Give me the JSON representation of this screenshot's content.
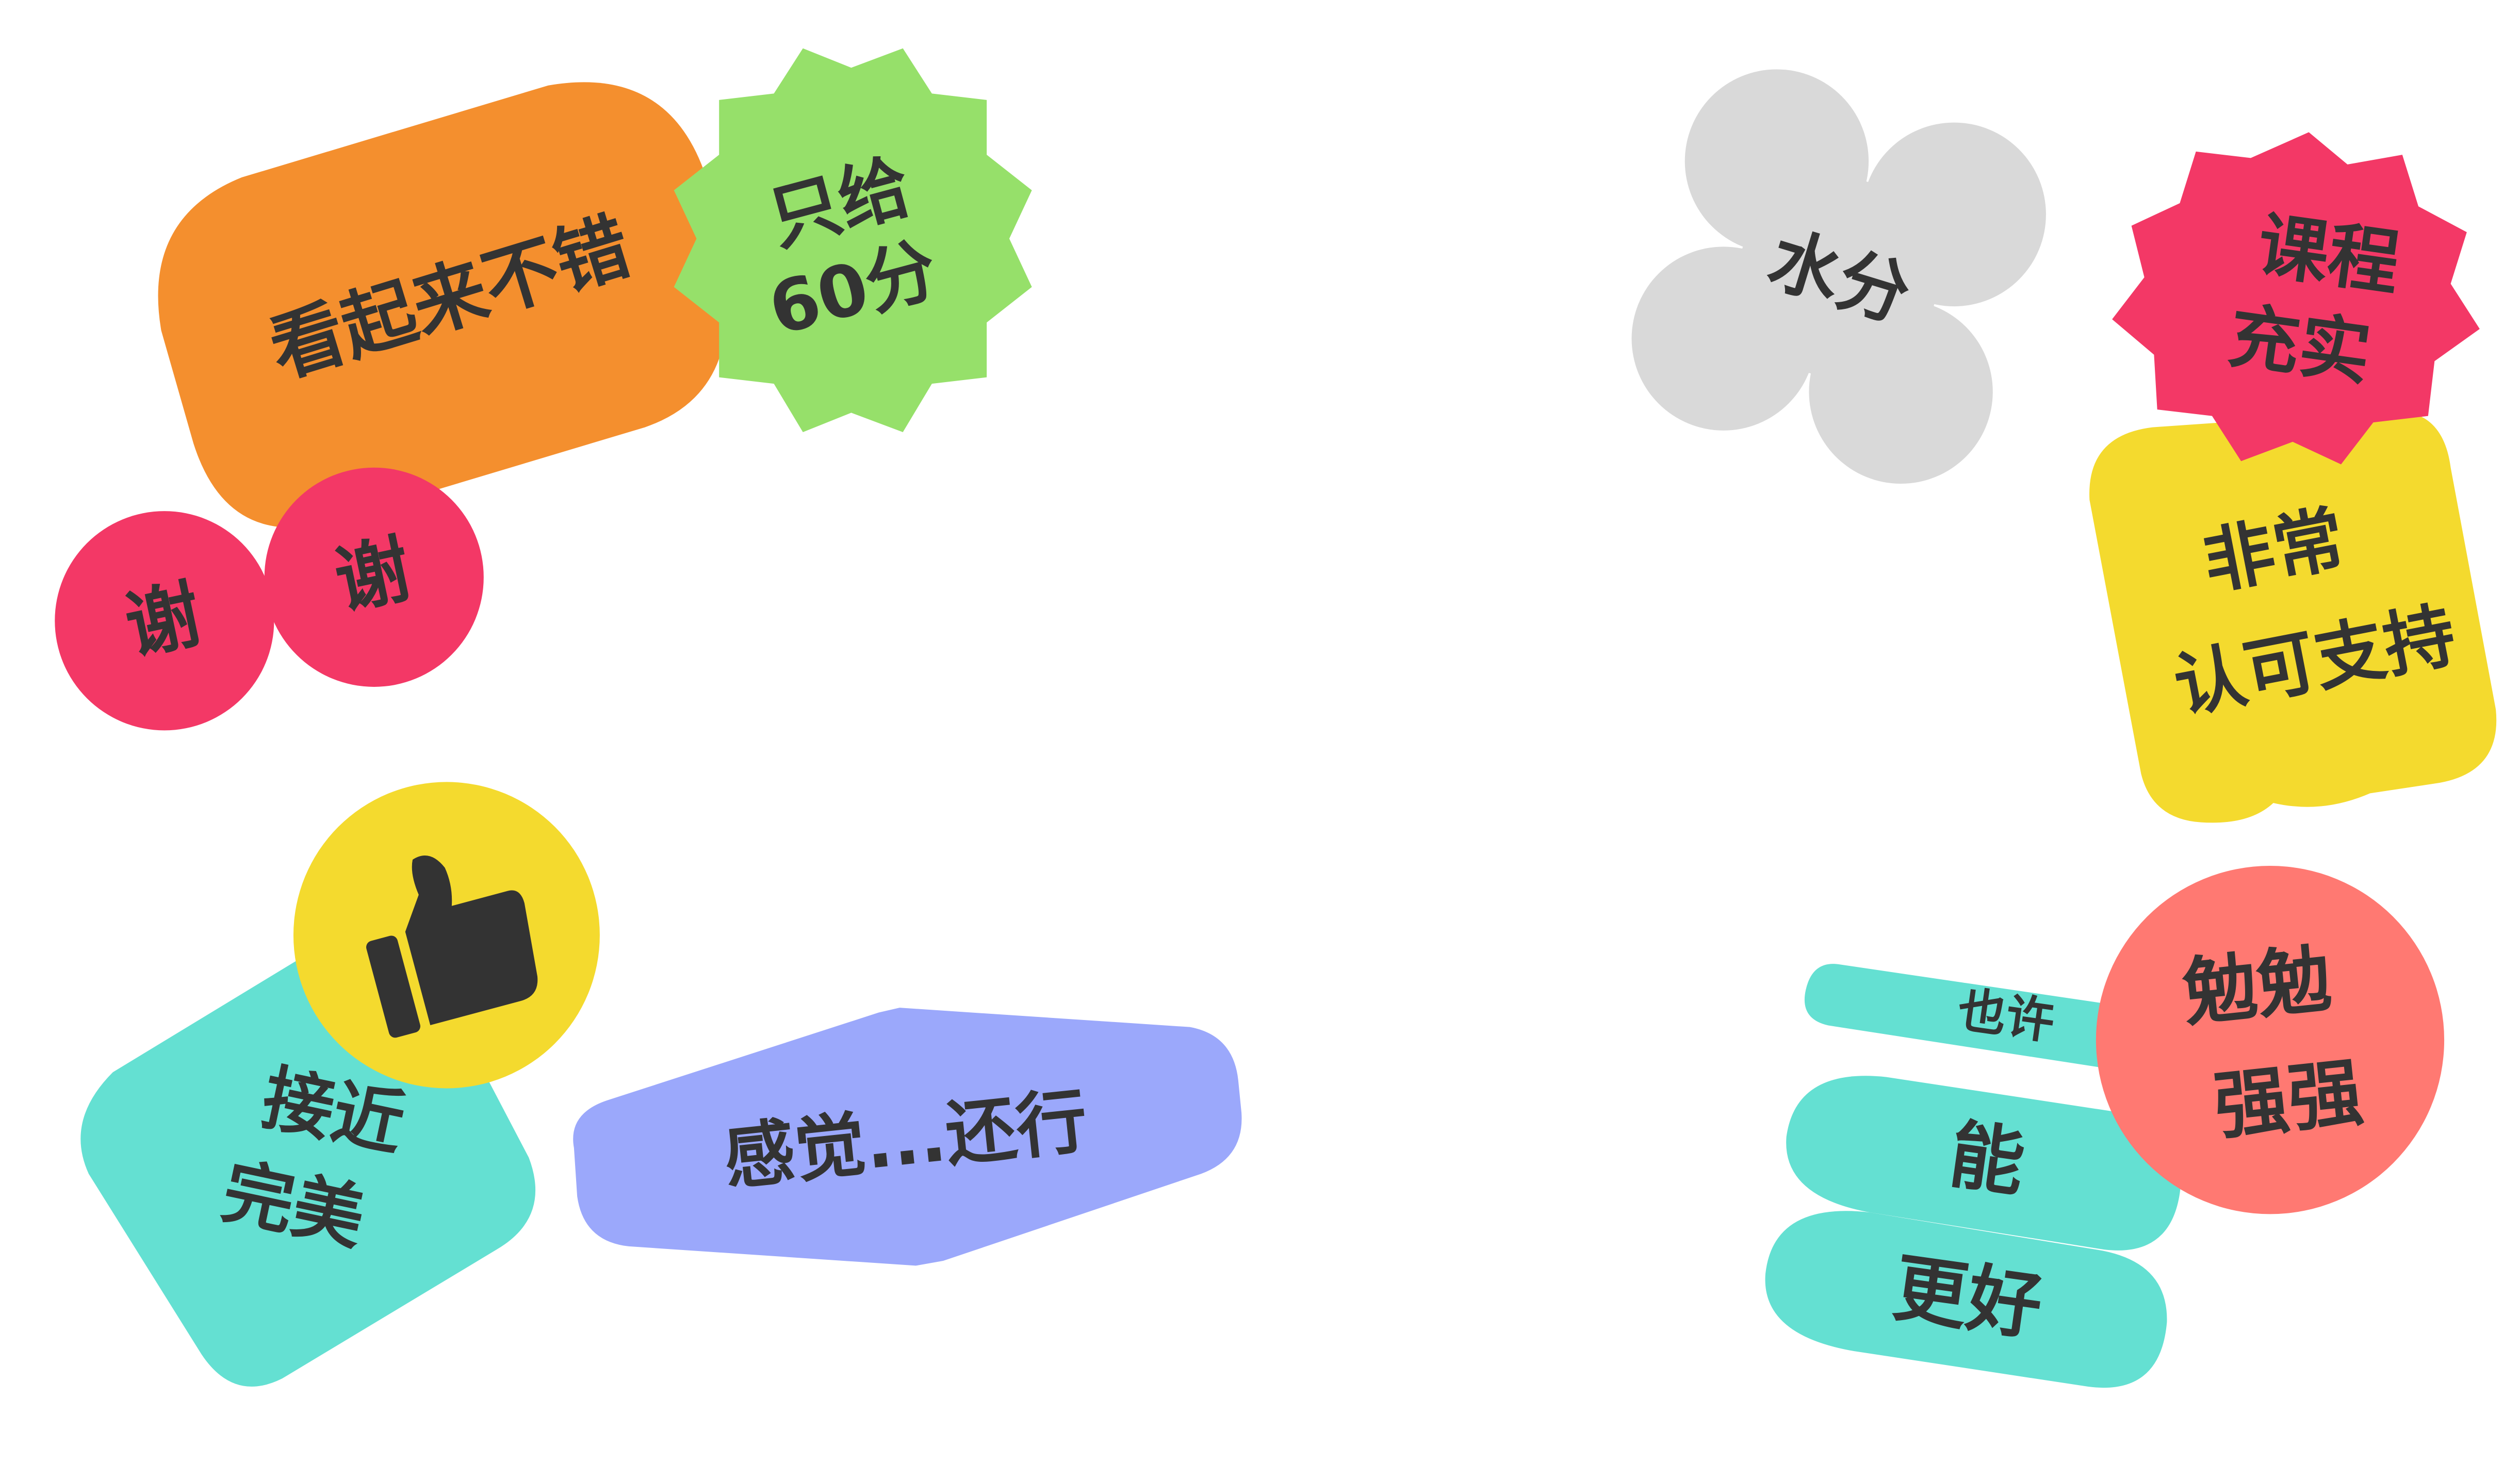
{
  "colors": {
    "orange": "#F48F2E",
    "green": "#96E06A",
    "pink": "#F33866",
    "teal": "#64E0D2",
    "yellow": "#F4DA2E",
    "periwinkle": "#9BA8FB",
    "gray": "#D9D9D9",
    "salmon": "#FF7972",
    "text": "#333333"
  },
  "stickers": {
    "looks_good": "看起来不错",
    "only_60_line1": "只给",
    "only_60_line2": "60分",
    "thanks_1": "谢",
    "thanks_2": "谢",
    "close_to_perfect_line1": "接近",
    "close_to_perfect_line2": "完美",
    "feels_ok": "感觉...还行",
    "watery": "水分",
    "course_rich_line1": "课程",
    "course_rich_line2": "充实",
    "approve_line1": "非常",
    "approve_line2": "认可支持",
    "maybe": "也许",
    "can_line": "能",
    "better_line": "更好",
    "barely_line1": "勉勉",
    "barely_line2": "强强"
  },
  "icons": {
    "thumbs_up": "thumbs-up-icon"
  }
}
